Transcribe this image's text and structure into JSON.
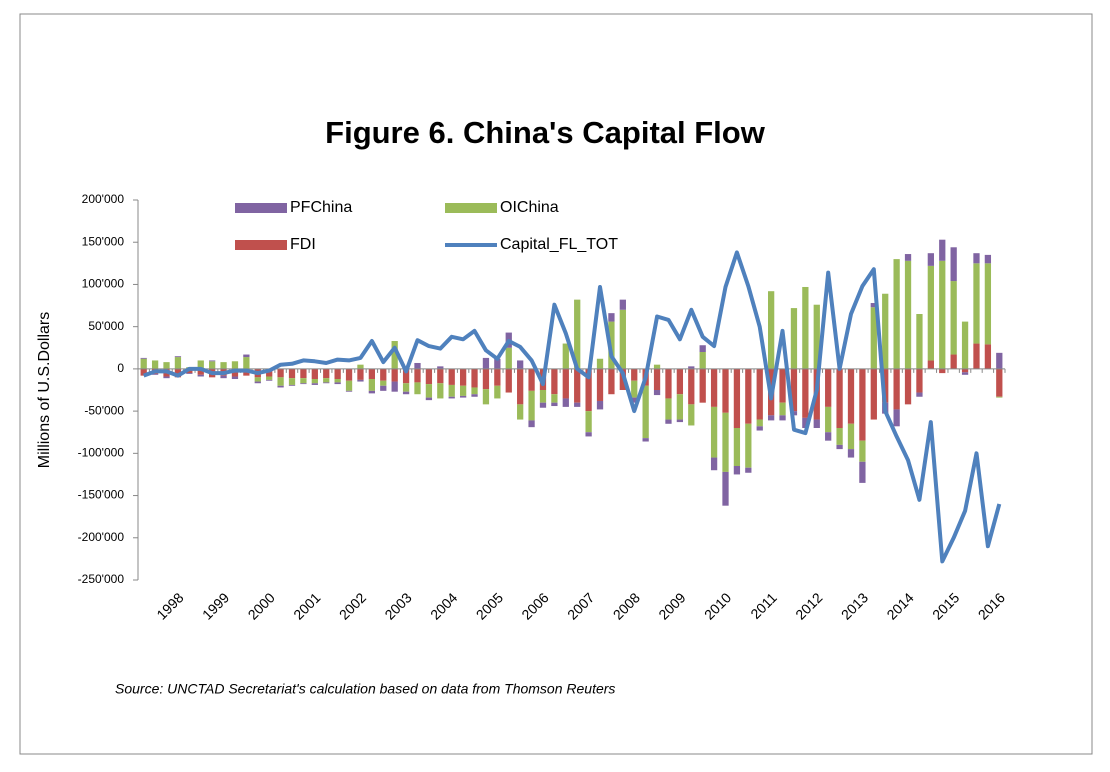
{
  "chart_data": {
    "type": "bar",
    "title": "Figure 6. China's  Capital Flow",
    "y_label": "Millions of U.S.Dollars",
    "source": "Source: UNCTAD Secretariat's calculation based on data from Thomson Reuters",
    "categories": [
      null,
      null,
      null,
      "1998",
      null,
      null,
      null,
      "1999",
      null,
      null,
      null,
      "2000",
      null,
      null,
      null,
      "2001",
      null,
      null,
      null,
      "2002",
      null,
      null,
      null,
      "2003",
      null,
      null,
      null,
      "2004",
      null,
      null,
      null,
      "2005",
      null,
      null,
      null,
      "2006",
      null,
      null,
      null,
      "2007",
      null,
      null,
      null,
      "2008",
      null,
      null,
      null,
      "2009",
      null,
      null,
      null,
      "2010",
      null,
      null,
      null,
      "2011",
      null,
      null,
      null,
      "2012",
      null,
      null,
      null,
      "2013",
      null,
      null,
      null,
      "2014",
      null,
      null,
      null,
      "2015",
      null,
      null,
      null,
      "2016"
    ],
    "ylim": [
      -250000,
      200000
    ],
    "yticks": [
      {
        "value": -250000,
        "label": "-250'000"
      },
      {
        "value": -200000,
        "label": "-200'000"
      },
      {
        "value": -150000,
        "label": "-150'000"
      },
      {
        "value": -100000,
        "label": "-100'000"
      },
      {
        "value": -50000,
        "label": "-50'000"
      },
      0,
      {
        "value": 50000,
        "label": "50'000"
      },
      {
        "value": 100000,
        "label": "100'000"
      },
      {
        "value": 150000,
        "label": "150'000"
      },
      {
        "value": 200000,
        "label": "200'000"
      }
    ],
    "series": [
      {
        "name": "FDI",
        "type": "bar",
        "color": "#c0504d",
        "values": [
          -8000,
          -6000,
          -9000,
          -10000,
          -5000,
          -7000,
          -10000,
          -8000,
          -9000,
          -8000,
          -10000,
          -9000,
          -10000,
          -11000,
          -11000,
          -12000,
          -11000,
          -12000,
          -14000,
          -13000,
          -12000,
          -14000,
          -15000,
          -17000,
          -16000,
          -18000,
          -17000,
          -19000,
          -20000,
          -22000,
          -24000,
          -20000,
          -28000,
          -42000,
          -26000,
          -25000,
          -30000,
          -35000,
          -40000,
          -50000,
          -38000,
          -30000,
          -25000,
          -14000,
          -20000,
          -25000,
          -35000,
          -30000,
          -42000,
          -40000,
          -45000,
          -52000,
          -70000,
          -65000,
          -60000,
          -55000,
          -40000,
          -50000,
          -58000,
          -60000,
          -45000,
          -70000,
          -65000,
          -85000,
          -60000,
          -40000,
          -48000,
          -42000,
          -28000,
          10000,
          -5000,
          17000,
          -4000,
          30000,
          29000,
          -33000
        ]
      },
      {
        "name": "OIChina",
        "type": "bar",
        "color": "#9bbb59",
        "values": [
          12000,
          10000,
          8000,
          14000,
          2000,
          10000,
          9000,
          8000,
          9000,
          14000,
          -5000,
          -4000,
          -10000,
          -8000,
          -6000,
          -5000,
          -5000,
          -4000,
          -12000,
          5000,
          -14000,
          -6000,
          33000,
          -10000,
          -14000,
          -16000,
          -18000,
          -14000,
          -12000,
          -8000,
          -18000,
          -15000,
          25000,
          -18000,
          -35000,
          -15000,
          -10000,
          30000,
          82000,
          -25000,
          12000,
          56000,
          70000,
          -20000,
          -62000,
          5000,
          -25000,
          -30000,
          -25000,
          20000,
          -60000,
          -70000,
          -45000,
          -52000,
          -8000,
          92000,
          -15000,
          72000,
          97000,
          76000,
          -30000,
          -20000,
          -30000,
          -25000,
          73000,
          89000,
          130000,
          128000,
          65000,
          112000,
          128000,
          87000,
          56000,
          95000,
          96000,
          -1000
        ]
      },
      {
        "name": "PFChina",
        "type": "bar",
        "color": "#8064a2",
        "values": [
          1000,
          -1000,
          -2000,
          1000,
          -1000,
          -2000,
          1000,
          -3000,
          -3000,
          3000,
          -2000,
          -1000,
          -2000,
          -1000,
          -1000,
          -2000,
          -1000,
          -2000,
          -1000,
          -2000,
          -3000,
          -6000,
          -12000,
          -3000,
          7000,
          -3000,
          3000,
          -2000,
          -2000,
          -3000,
          13000,
          12000,
          18000,
          10000,
          -8000,
          -6000,
          -4000,
          -10000,
          -5000,
          -5000,
          -10000,
          10000,
          12000,
          -6000,
          -4000,
          -6000,
          -5000,
          -3000,
          3000,
          8000,
          -15000,
          -40000,
          -10000,
          -6000,
          -5000,
          -6000,
          -6000,
          -5000,
          -12000,
          -10000,
          -10000,
          -5000,
          -10000,
          -25000,
          5000,
          -13000,
          -20000,
          8000,
          -5000,
          15000,
          25000,
          40000,
          -3000,
          12000,
          10000,
          19000
        ]
      },
      {
        "name": "Capital_FL_TOT",
        "type": "line",
        "color": "#4f81bd",
        "values": [
          -8000,
          -3000,
          -3000,
          -8000,
          0,
          0,
          -5000,
          -5000,
          -2000,
          -2000,
          -5000,
          -2000,
          5000,
          6000,
          10000,
          9000,
          7000,
          11000,
          10000,
          13000,
          33000,
          8000,
          25000,
          -3000,
          34000,
          27000,
          24000,
          38000,
          35000,
          45000,
          22000,
          12000,
          33000,
          26000,
          10000,
          -18000,
          76000,
          42000,
          0,
          -10000,
          97000,
          15000,
          -5000,
          -50000,
          -10000,
          62000,
          58000,
          35000,
          70000,
          38000,
          27000,
          97000,
          138000,
          98000,
          50000,
          -35000,
          45000,
          -72000,
          -76000,
          -25000,
          114000,
          0,
          65000,
          98000,
          118000,
          -50000,
          -80000,
          -108000,
          -155000,
          -63000,
          -228000,
          -200000,
          -168000,
          -100000,
          -210000,
          -160000
        ]
      }
    ]
  }
}
